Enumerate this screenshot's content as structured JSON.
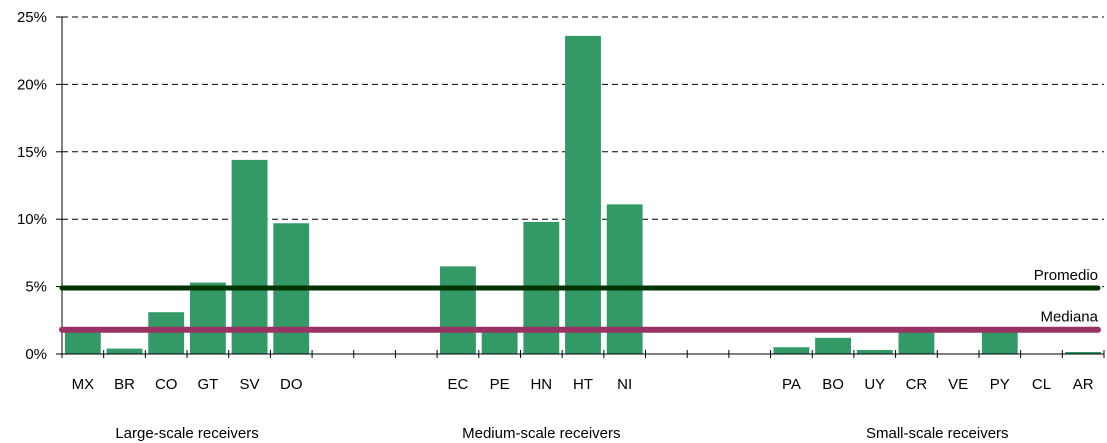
{
  "chart_data": {
    "type": "bar",
    "categories": [
      "MX",
      "BR",
      "CO",
      "GT",
      "SV",
      "DO",
      "",
      "",
      "",
      "EC",
      "PE",
      "HN",
      "HT",
      "NI",
      "",
      "",
      "",
      "PA",
      "BO",
      "UY",
      "CR",
      "VE",
      "PY",
      "CL",
      "AR"
    ],
    "values": [
      1.7,
      0.4,
      3.1,
      5.3,
      14.4,
      9.7,
      null,
      null,
      null,
      6.5,
      1.7,
      9.8,
      23.6,
      11.1,
      null,
      null,
      null,
      0.5,
      1.2,
      0.3,
      1.6,
      0.0,
      1.6,
      0.0,
      0.15
    ],
    "yticks": [
      "0%",
      "5%",
      "10%",
      "15%",
      "20%",
      "25%"
    ],
    "ylim": [
      0,
      25
    ],
    "grid": true,
    "groups": [
      {
        "label": "Large-scale receivers"
      },
      {
        "label": "Medium-scale receivers"
      },
      {
        "label": "Small-scale receivers"
      }
    ],
    "reference_lines": [
      {
        "label": "Promedio",
        "value": 4.9
      },
      {
        "label": "Mediana",
        "value": 1.8
      }
    ]
  },
  "colors": {
    "bar": "#339966",
    "promedio": "#003300",
    "mediana": "#993366"
  }
}
